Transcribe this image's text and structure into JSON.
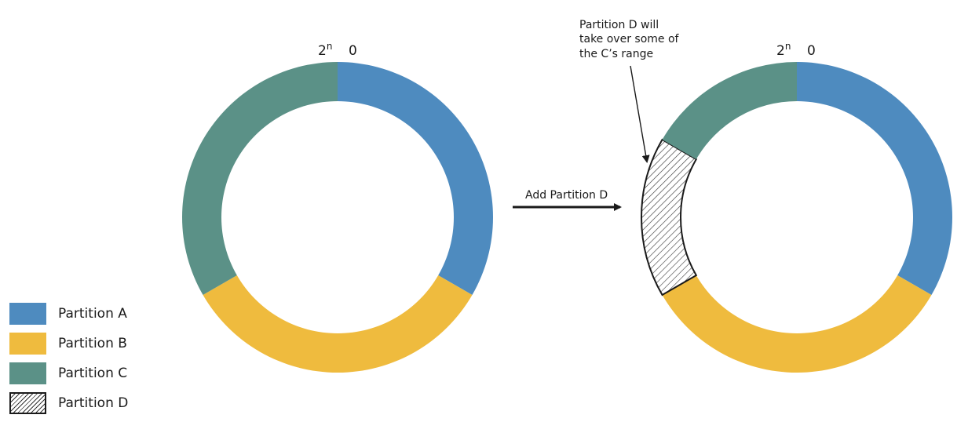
{
  "colors": {
    "partition_a": "#4e8bbf",
    "partition_b": "#efbb3e",
    "partition_c": "#5b9187",
    "partition_d_pattern": "hatched",
    "text": "#1a1a1a"
  },
  "ring_before": {
    "label_2n_base": "2",
    "label_2n_exp": "n",
    "label_zero": "0",
    "segments": [
      {
        "name": "Partition A",
        "start_deg": 0,
        "end_deg": 120
      },
      {
        "name": "Partition B",
        "start_deg": 120,
        "end_deg": 240
      },
      {
        "name": "Partition C",
        "start_deg": 240,
        "end_deg": 360
      }
    ]
  },
  "ring_after": {
    "label_2n_base": "2",
    "label_2n_exp": "n",
    "label_zero": "0",
    "segments": [
      {
        "name": "Partition A",
        "start_deg": 0,
        "end_deg": 120
      },
      {
        "name": "Partition B",
        "start_deg": 120,
        "end_deg": 240
      },
      {
        "name": "Partition D",
        "start_deg": 240,
        "end_deg": 300
      },
      {
        "name": "Partition C",
        "start_deg": 300,
        "end_deg": 360
      }
    ]
  },
  "arrow": {
    "label": "Add Partition D"
  },
  "annotation": {
    "lines": [
      "Partition D will",
      "take over some of",
      "the C’s range"
    ]
  },
  "legend": [
    {
      "label": "Partition A",
      "color_key": "partition_a"
    },
    {
      "label": "Partition B",
      "color_key": "partition_b"
    },
    {
      "label": "Partition C",
      "color_key": "partition_c"
    },
    {
      "label": "Partition D",
      "color_key": "partition_d_pattern"
    }
  ]
}
